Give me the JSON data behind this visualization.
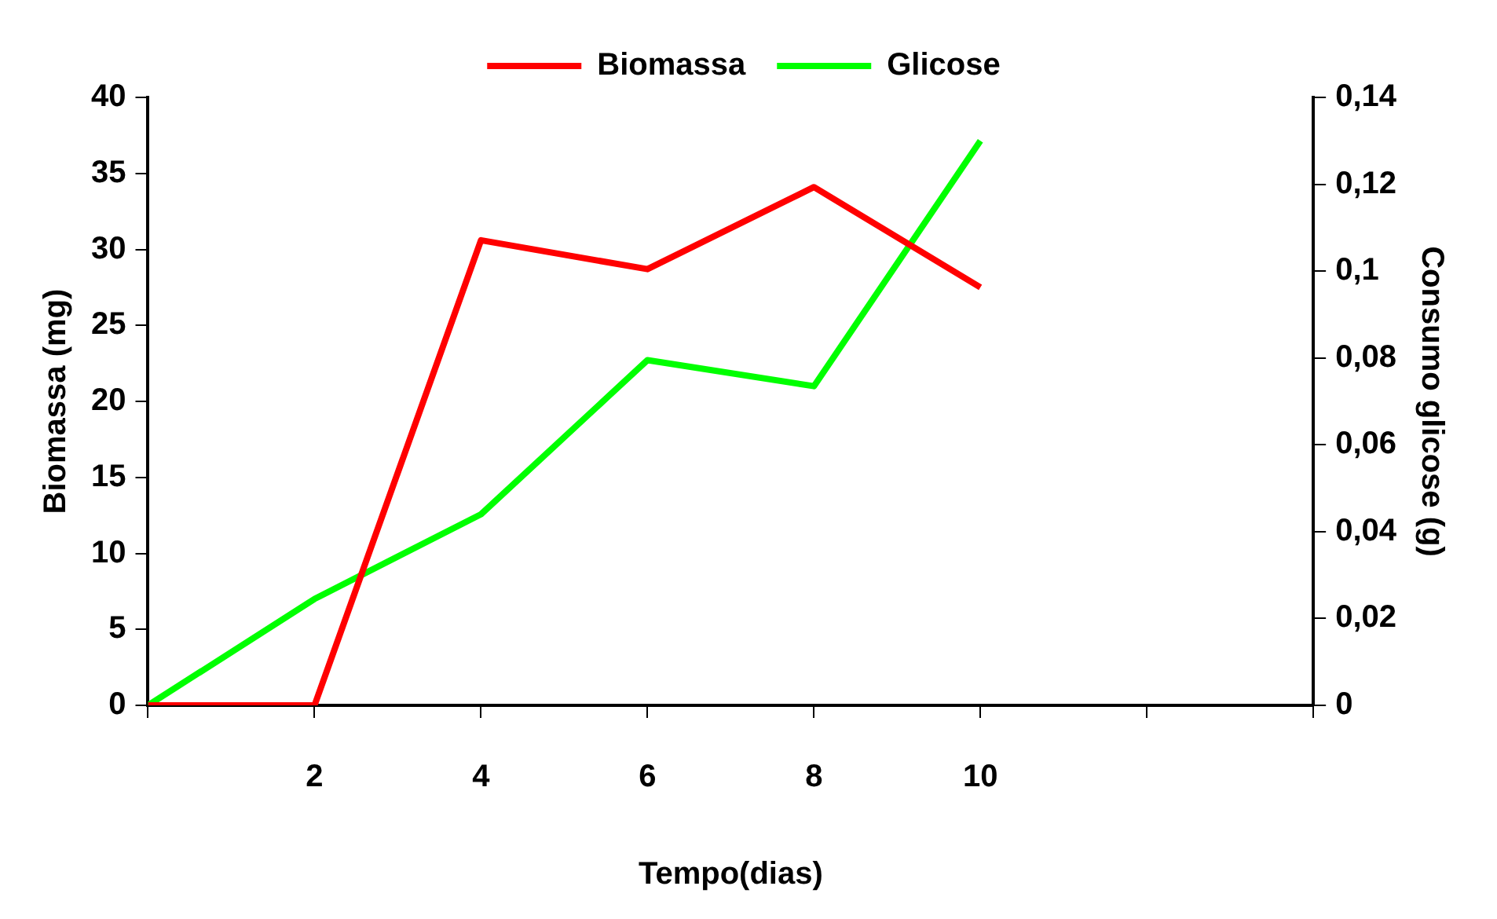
{
  "chart_data": {
    "type": "line",
    "xlabel": "Tempo(dias)",
    "ylabel": "Biomassa (mg)",
    "y2label": "Consumo glicose (g)",
    "x": [
      0,
      2,
      4,
      6,
      8,
      10
    ],
    "series": [
      {
        "name": "Biomassa",
        "color": "#ff0000",
        "values": [
          0,
          0,
          30.6,
          28.7,
          34.1,
          27.5
        ]
      },
      {
        "name": "Glicose",
        "color": "#00ff00",
        "axis": "y2",
        "values": [
          0,
          0.0245,
          0.044,
          0.0795,
          0.0735,
          0.13
        ]
      }
    ],
    "xlim": [
      0,
      14
    ],
    "xticks": [
      {
        "value": 0,
        "label": null
      },
      2,
      4,
      6,
      8,
      10,
      {
        "value": 12,
        "label": null
      },
      {
        "value": 14,
        "label": null
      }
    ],
    "ylim": [
      0,
      40
    ],
    "yticks": [
      0,
      5,
      10,
      15,
      20,
      25,
      30,
      35,
      40
    ],
    "y2lim": [
      0,
      0.14
    ],
    "y2ticks": [
      0,
      {
        "value": 0.02,
        "label": "0,02"
      },
      {
        "value": 0.04,
        "label": "0,04"
      },
      {
        "value": 0.06,
        "label": "0,06"
      },
      {
        "value": 0.08,
        "label": "0,08"
      },
      {
        "value": 0.1,
        "label": "0,1"
      },
      {
        "value": 0.12,
        "label": "0,12"
      },
      {
        "value": 0.14,
        "label": "0,14"
      }
    ],
    "grid": false,
    "legend": "top"
  }
}
